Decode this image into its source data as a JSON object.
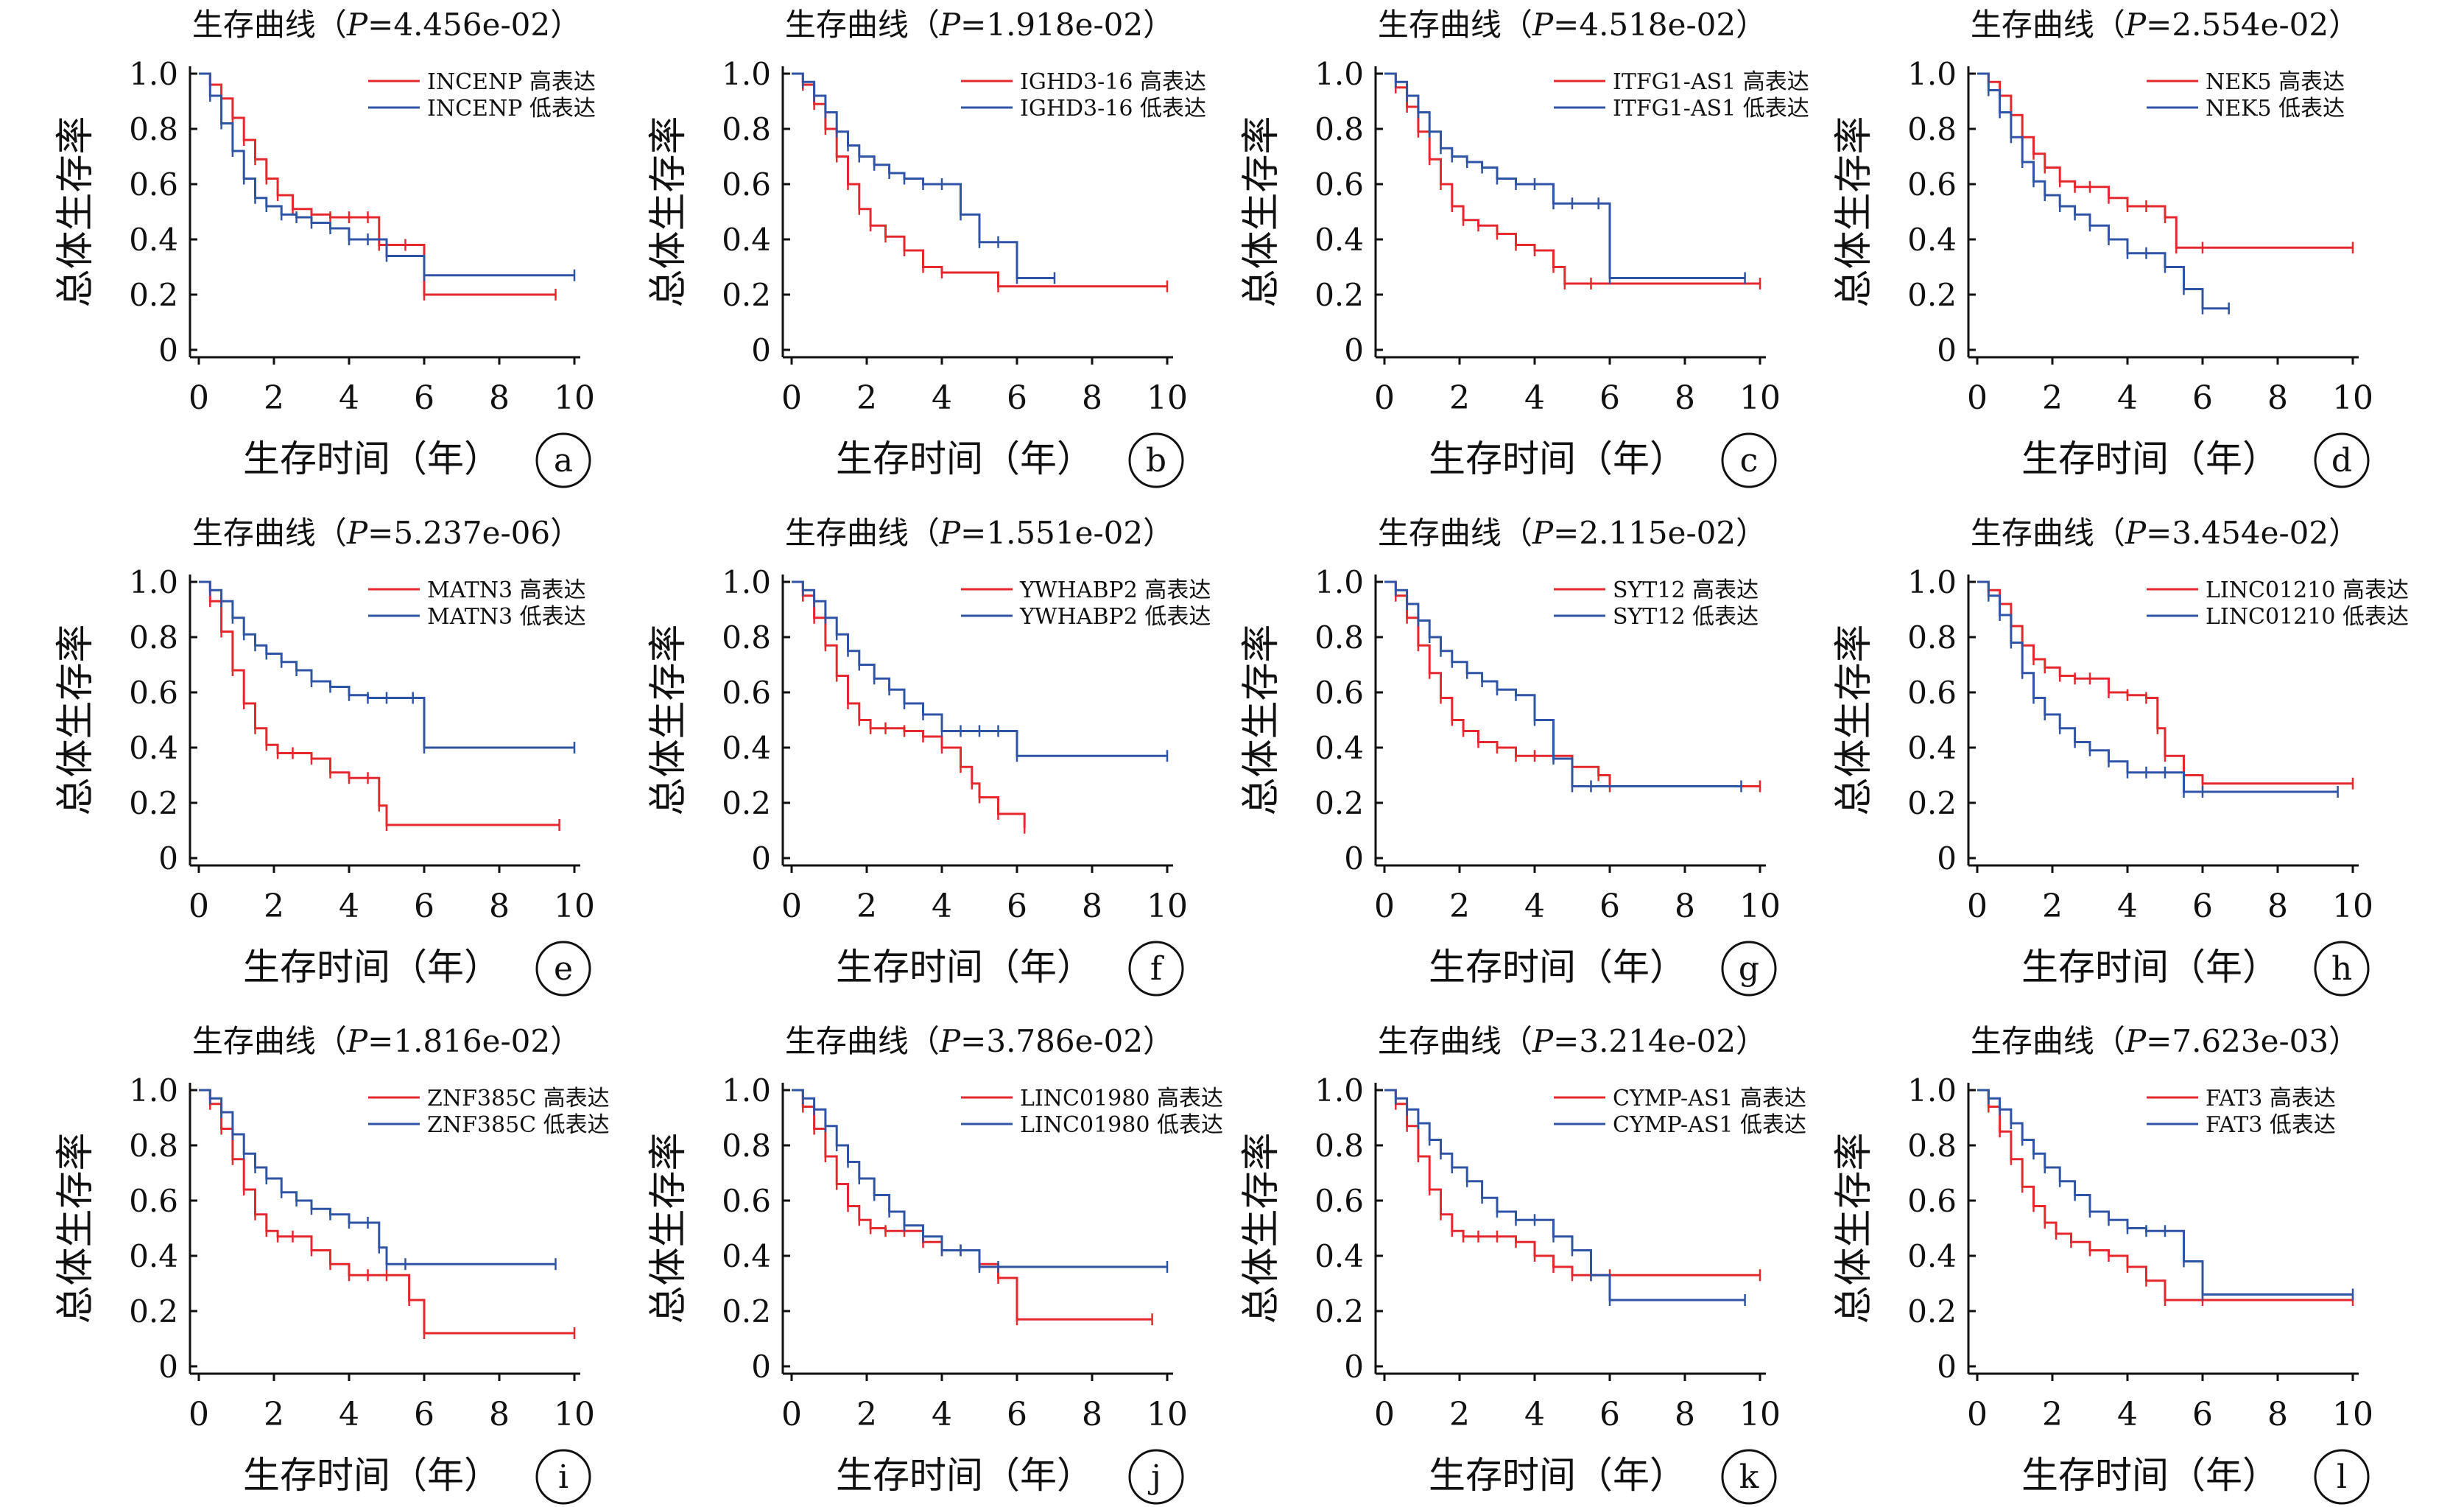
{
  "figure": {
    "title_prefix": "生存曲线（",
    "p_symbol": "P",
    "title_suffix": "）",
    "ylabel": "总体生存率",
    "xlabel": "生存时间（年）",
    "xticks": [
      "0",
      "2",
      "4",
      "6",
      "8",
      "10"
    ],
    "yticks": [
      "0",
      "0.2",
      "0.4",
      "0.6",
      "0.8",
      "1.0"
    ],
    "xlim": [
      0,
      10
    ],
    "ylim": [
      0,
      1
    ],
    "high_suffix": "高表达",
    "low_suffix": "低表达",
    "colors": {
      "high": "#e5282e",
      "low": "#2f54a6"
    }
  },
  "chart_data": [
    {
      "type": "line",
      "panel_label": "a",
      "p_value": "4.456e-02",
      "gene": "INCENP",
      "series": [
        {
          "name": "INCENP 高表达",
          "group": "high",
          "x": [
            0,
            0.3,
            0.6,
            0.9,
            1.2,
            1.5,
            1.8,
            2.1,
            2.5,
            3.0,
            3.5,
            4.0,
            4.5,
            4.8,
            5.5,
            6.0,
            9.5
          ],
          "y": [
            1.0,
            0.96,
            0.91,
            0.84,
            0.76,
            0.69,
            0.62,
            0.56,
            0.51,
            0.49,
            0.48,
            0.48,
            0.48,
            0.38,
            0.38,
            0.2,
            0.2
          ]
        },
        {
          "name": "INCENP 低表达",
          "group": "low",
          "x": [
            0,
            0.3,
            0.6,
            0.9,
            1.2,
            1.5,
            1.8,
            2.2,
            2.6,
            3.0,
            3.5,
            4.0,
            4.5,
            5.0,
            6.0,
            10.0
          ],
          "y": [
            1.0,
            0.92,
            0.82,
            0.72,
            0.62,
            0.55,
            0.52,
            0.49,
            0.48,
            0.46,
            0.44,
            0.4,
            0.4,
            0.34,
            0.27,
            0.27
          ]
        }
      ]
    },
    {
      "type": "line",
      "panel_label": "b",
      "p_value": "1.918e-02",
      "gene": "IGHD3-16",
      "series": [
        {
          "name": "IGHD3-16 高表达",
          "group": "high",
          "x": [
            0,
            0.3,
            0.6,
            0.9,
            1.2,
            1.5,
            1.8,
            2.1,
            2.5,
            3.0,
            3.5,
            4.0,
            5.5,
            10.0
          ],
          "y": [
            1.0,
            0.96,
            0.89,
            0.8,
            0.7,
            0.6,
            0.51,
            0.45,
            0.41,
            0.36,
            0.3,
            0.28,
            0.23,
            0.23
          ]
        },
        {
          "name": "IGHD3-16 低表达",
          "group": "low",
          "x": [
            0,
            0.3,
            0.6,
            0.9,
            1.2,
            1.5,
            1.8,
            2.2,
            2.6,
            3.0,
            3.5,
            4.0,
            4.5,
            5.0,
            5.5,
            6.0,
            7.0
          ],
          "y": [
            1.0,
            0.97,
            0.92,
            0.86,
            0.79,
            0.74,
            0.7,
            0.67,
            0.64,
            0.62,
            0.6,
            0.6,
            0.49,
            0.39,
            0.39,
            0.26,
            0.26
          ]
        }
      ]
    },
    {
      "type": "line",
      "panel_label": "c",
      "p_value": "4.518e-02",
      "gene": "ITFG1-AS1",
      "series": [
        {
          "name": "ITFG1-AS1 高表达",
          "group": "high",
          "x": [
            0,
            0.3,
            0.6,
            0.9,
            1.2,
            1.5,
            1.8,
            2.1,
            2.5,
            3.0,
            3.5,
            4.0,
            4.5,
            4.8,
            5.5,
            10.0
          ],
          "y": [
            1.0,
            0.95,
            0.88,
            0.79,
            0.69,
            0.6,
            0.52,
            0.47,
            0.45,
            0.42,
            0.38,
            0.36,
            0.3,
            0.24,
            0.24,
            0.24
          ]
        },
        {
          "name": "ITFG1-AS1 低表达",
          "group": "low",
          "x": [
            0,
            0.3,
            0.6,
            0.9,
            1.2,
            1.5,
            1.8,
            2.2,
            2.6,
            3.0,
            3.5,
            4.0,
            4.5,
            5.0,
            5.7,
            6.0,
            9.6
          ],
          "y": [
            1.0,
            0.97,
            0.92,
            0.86,
            0.79,
            0.73,
            0.7,
            0.68,
            0.66,
            0.62,
            0.6,
            0.6,
            0.53,
            0.53,
            0.53,
            0.26,
            0.26
          ]
        }
      ]
    },
    {
      "type": "line",
      "panel_label": "d",
      "p_value": "2.554e-02",
      "gene": "NEK5",
      "series": [
        {
          "name": "NEK5 高表达",
          "group": "high",
          "x": [
            0,
            0.3,
            0.6,
            0.9,
            1.2,
            1.5,
            1.8,
            2.2,
            2.6,
            3.0,
            3.5,
            4.0,
            4.5,
            5.0,
            5.3,
            6.0,
            10.0
          ],
          "y": [
            1.0,
            0.97,
            0.92,
            0.85,
            0.77,
            0.71,
            0.66,
            0.61,
            0.59,
            0.59,
            0.55,
            0.52,
            0.52,
            0.48,
            0.37,
            0.37,
            0.37
          ]
        },
        {
          "name": "NEK5 低表达",
          "group": "low",
          "x": [
            0,
            0.3,
            0.6,
            0.9,
            1.2,
            1.5,
            1.8,
            2.2,
            2.6,
            3.0,
            3.5,
            4.0,
            4.5,
            5.0,
            5.5,
            6.0,
            6.7
          ],
          "y": [
            1.0,
            0.94,
            0.86,
            0.77,
            0.68,
            0.61,
            0.56,
            0.52,
            0.49,
            0.45,
            0.4,
            0.35,
            0.35,
            0.3,
            0.22,
            0.15,
            0.15
          ]
        }
      ]
    },
    {
      "type": "line",
      "panel_label": "e",
      "p_value": "5.237e-06",
      "gene": "MATN3",
      "series": [
        {
          "name": "MATN3 高表达",
          "group": "high",
          "x": [
            0,
            0.3,
            0.6,
            0.9,
            1.2,
            1.5,
            1.8,
            2.1,
            2.5,
            3.0,
            3.5,
            4.0,
            4.5,
            4.8,
            5.0,
            9.6
          ],
          "y": [
            1.0,
            0.93,
            0.82,
            0.68,
            0.56,
            0.47,
            0.41,
            0.38,
            0.38,
            0.36,
            0.31,
            0.29,
            0.29,
            0.19,
            0.12,
            0.12
          ]
        },
        {
          "name": "MATN3 低表达",
          "group": "low",
          "x": [
            0,
            0.3,
            0.6,
            0.9,
            1.2,
            1.5,
            1.8,
            2.2,
            2.6,
            3.0,
            3.5,
            4.0,
            4.5,
            5.0,
            5.7,
            6.0,
            10.0
          ],
          "y": [
            1.0,
            0.97,
            0.93,
            0.87,
            0.81,
            0.77,
            0.74,
            0.71,
            0.68,
            0.64,
            0.62,
            0.59,
            0.58,
            0.58,
            0.58,
            0.4,
            0.4
          ]
        }
      ]
    },
    {
      "type": "line",
      "panel_label": "f",
      "p_value": "1.551e-02",
      "gene": "YWHABP2",
      "series": [
        {
          "name": "YWHABP2 高表达",
          "group": "high",
          "x": [
            0,
            0.3,
            0.6,
            0.9,
            1.2,
            1.5,
            1.8,
            2.1,
            2.5,
            3.0,
            3.5,
            4.0,
            4.5,
            4.8,
            5.0,
            5.5,
            6.2
          ],
          "y": [
            1.0,
            0.95,
            0.87,
            0.77,
            0.66,
            0.56,
            0.5,
            0.47,
            0.47,
            0.46,
            0.44,
            0.4,
            0.33,
            0.27,
            0.22,
            0.16,
            0.11
          ]
        },
        {
          "name": "YWHABP2 低表达",
          "group": "low",
          "x": [
            0,
            0.3,
            0.6,
            0.9,
            1.2,
            1.5,
            1.8,
            2.2,
            2.6,
            3.0,
            3.5,
            4.0,
            4.5,
            5.0,
            5.5,
            6.0,
            10.0
          ],
          "y": [
            1.0,
            0.97,
            0.93,
            0.87,
            0.81,
            0.75,
            0.7,
            0.65,
            0.61,
            0.56,
            0.52,
            0.46,
            0.46,
            0.46,
            0.46,
            0.37,
            0.37
          ]
        }
      ]
    },
    {
      "type": "line",
      "panel_label": "g",
      "p_value": "2.115e-02",
      "gene": "SYT12",
      "series": [
        {
          "name": "SYT12 高表达",
          "group": "high",
          "x": [
            0,
            0.3,
            0.6,
            0.9,
            1.2,
            1.5,
            1.8,
            2.1,
            2.5,
            3.0,
            3.5,
            4.0,
            4.5,
            5.0,
            5.7,
            6.0,
            10.0
          ],
          "y": [
            1.0,
            0.95,
            0.87,
            0.77,
            0.67,
            0.58,
            0.5,
            0.46,
            0.42,
            0.4,
            0.37,
            0.37,
            0.37,
            0.33,
            0.3,
            0.26,
            0.26
          ]
        },
        {
          "name": "SYT12 低表达",
          "group": "low",
          "x": [
            0,
            0.3,
            0.6,
            0.9,
            1.2,
            1.5,
            1.8,
            2.2,
            2.6,
            3.0,
            3.5,
            4.0,
            4.5,
            5.0,
            5.5,
            9.5
          ],
          "y": [
            1.0,
            0.97,
            0.92,
            0.86,
            0.8,
            0.75,
            0.71,
            0.67,
            0.64,
            0.61,
            0.59,
            0.5,
            0.36,
            0.26,
            0.26,
            0.26
          ]
        }
      ]
    },
    {
      "type": "line",
      "panel_label": "h",
      "p_value": "3.454e-02",
      "gene": "LINC01210",
      "series": [
        {
          "name": "LINC01210 高表达",
          "group": "high",
          "x": [
            0,
            0.3,
            0.6,
            0.9,
            1.2,
            1.5,
            1.8,
            2.2,
            2.6,
            3.0,
            3.5,
            4.0,
            4.5,
            4.8,
            5.0,
            5.5,
            6.0,
            10.0
          ],
          "y": [
            1.0,
            0.97,
            0.92,
            0.84,
            0.77,
            0.72,
            0.69,
            0.66,
            0.65,
            0.65,
            0.6,
            0.59,
            0.58,
            0.47,
            0.37,
            0.3,
            0.27,
            0.27
          ]
        },
        {
          "name": "LINC01210 低表达",
          "group": "low",
          "x": [
            0,
            0.3,
            0.6,
            0.9,
            1.2,
            1.5,
            1.8,
            2.2,
            2.6,
            3.0,
            3.5,
            4.0,
            4.5,
            5.0,
            5.5,
            6.0,
            9.6
          ],
          "y": [
            1.0,
            0.95,
            0.88,
            0.78,
            0.67,
            0.58,
            0.52,
            0.47,
            0.42,
            0.39,
            0.35,
            0.31,
            0.31,
            0.31,
            0.24,
            0.24,
            0.24
          ]
        }
      ]
    },
    {
      "type": "line",
      "panel_label": "i",
      "p_value": "1.816e-02",
      "gene": "ZNF385C",
      "series": [
        {
          "name": "ZNF385C 高表达",
          "group": "high",
          "x": [
            0,
            0.3,
            0.6,
            0.9,
            1.2,
            1.5,
            1.8,
            2.1,
            2.5,
            3.0,
            3.5,
            4.0,
            4.5,
            5.0,
            5.6,
            6.0,
            10.0
          ],
          "y": [
            1.0,
            0.95,
            0.86,
            0.75,
            0.64,
            0.55,
            0.49,
            0.47,
            0.47,
            0.42,
            0.37,
            0.33,
            0.33,
            0.33,
            0.24,
            0.12,
            0.12
          ]
        },
        {
          "name": "ZNF385C 低表达",
          "group": "low",
          "x": [
            0,
            0.3,
            0.6,
            0.9,
            1.2,
            1.5,
            1.8,
            2.2,
            2.6,
            3.0,
            3.5,
            4.0,
            4.5,
            4.8,
            5.0,
            5.5,
            9.5
          ],
          "y": [
            1.0,
            0.97,
            0.92,
            0.84,
            0.77,
            0.72,
            0.68,
            0.63,
            0.6,
            0.57,
            0.55,
            0.52,
            0.52,
            0.43,
            0.37,
            0.37,
            0.37
          ]
        }
      ]
    },
    {
      "type": "line",
      "panel_label": "j",
      "p_value": "3.786e-02",
      "gene": "LINC01980",
      "series": [
        {
          "name": "LINC01980 高表达",
          "group": "high",
          "x": [
            0,
            0.3,
            0.6,
            0.9,
            1.2,
            1.5,
            1.8,
            2.1,
            2.5,
            3.0,
            3.5,
            4.0,
            4.5,
            5.0,
            5.5,
            6.0,
            9.6
          ],
          "y": [
            1.0,
            0.94,
            0.86,
            0.76,
            0.66,
            0.58,
            0.53,
            0.5,
            0.49,
            0.49,
            0.45,
            0.42,
            0.42,
            0.37,
            0.32,
            0.17,
            0.17
          ]
        },
        {
          "name": "LINC01980 低表达",
          "group": "low",
          "x": [
            0,
            0.3,
            0.6,
            0.9,
            1.2,
            1.5,
            1.8,
            2.2,
            2.6,
            3.0,
            3.5,
            4.0,
            4.5,
            5.0,
            5.5,
            10.0
          ],
          "y": [
            1.0,
            0.97,
            0.93,
            0.87,
            0.8,
            0.74,
            0.68,
            0.62,
            0.56,
            0.51,
            0.47,
            0.42,
            0.42,
            0.36,
            0.36,
            0.36
          ]
        }
      ]
    },
    {
      "type": "line",
      "panel_label": "k",
      "p_value": "3.214e-02",
      "gene": "CYMP-AS1",
      "series": [
        {
          "name": "CYMP-AS1 高表达",
          "group": "high",
          "x": [
            0,
            0.3,
            0.6,
            0.9,
            1.2,
            1.5,
            1.8,
            2.1,
            2.5,
            3.0,
            3.5,
            4.0,
            4.5,
            5.0,
            5.5,
            6.0,
            10.0
          ],
          "y": [
            1.0,
            0.95,
            0.87,
            0.76,
            0.64,
            0.55,
            0.49,
            0.47,
            0.47,
            0.47,
            0.45,
            0.4,
            0.36,
            0.33,
            0.33,
            0.33,
            0.33
          ]
        },
        {
          "name": "CYMP-AS1 低表达",
          "group": "low",
          "x": [
            0,
            0.3,
            0.6,
            0.9,
            1.2,
            1.5,
            1.8,
            2.2,
            2.6,
            3.0,
            3.5,
            4.0,
            4.5,
            5.0,
            5.5,
            6.0,
            9.6
          ],
          "y": [
            1.0,
            0.97,
            0.93,
            0.88,
            0.82,
            0.77,
            0.72,
            0.67,
            0.61,
            0.56,
            0.53,
            0.53,
            0.47,
            0.42,
            0.33,
            0.24,
            0.24
          ]
        }
      ]
    },
    {
      "type": "line",
      "panel_label": "l",
      "p_value": "7.623e-03",
      "gene": "FAT3",
      "series": [
        {
          "name": "FAT3 高表达",
          "group": "high",
          "x": [
            0,
            0.3,
            0.6,
            0.9,
            1.2,
            1.5,
            1.8,
            2.1,
            2.5,
            3.0,
            3.5,
            4.0,
            4.5,
            5.0,
            6.0,
            10.0
          ],
          "y": [
            1.0,
            0.94,
            0.85,
            0.75,
            0.65,
            0.58,
            0.52,
            0.48,
            0.45,
            0.42,
            0.4,
            0.36,
            0.31,
            0.24,
            0.24,
            0.24
          ]
        },
        {
          "name": "FAT3 低表达",
          "group": "low",
          "x": [
            0,
            0.3,
            0.6,
            0.9,
            1.2,
            1.5,
            1.8,
            2.2,
            2.6,
            3.0,
            3.5,
            4.0,
            4.5,
            5.0,
            5.5,
            6.0,
            10.0
          ],
          "y": [
            1.0,
            0.97,
            0.93,
            0.88,
            0.82,
            0.77,
            0.72,
            0.67,
            0.62,
            0.56,
            0.53,
            0.5,
            0.49,
            0.49,
            0.38,
            0.26,
            0.26
          ]
        }
      ]
    }
  ]
}
